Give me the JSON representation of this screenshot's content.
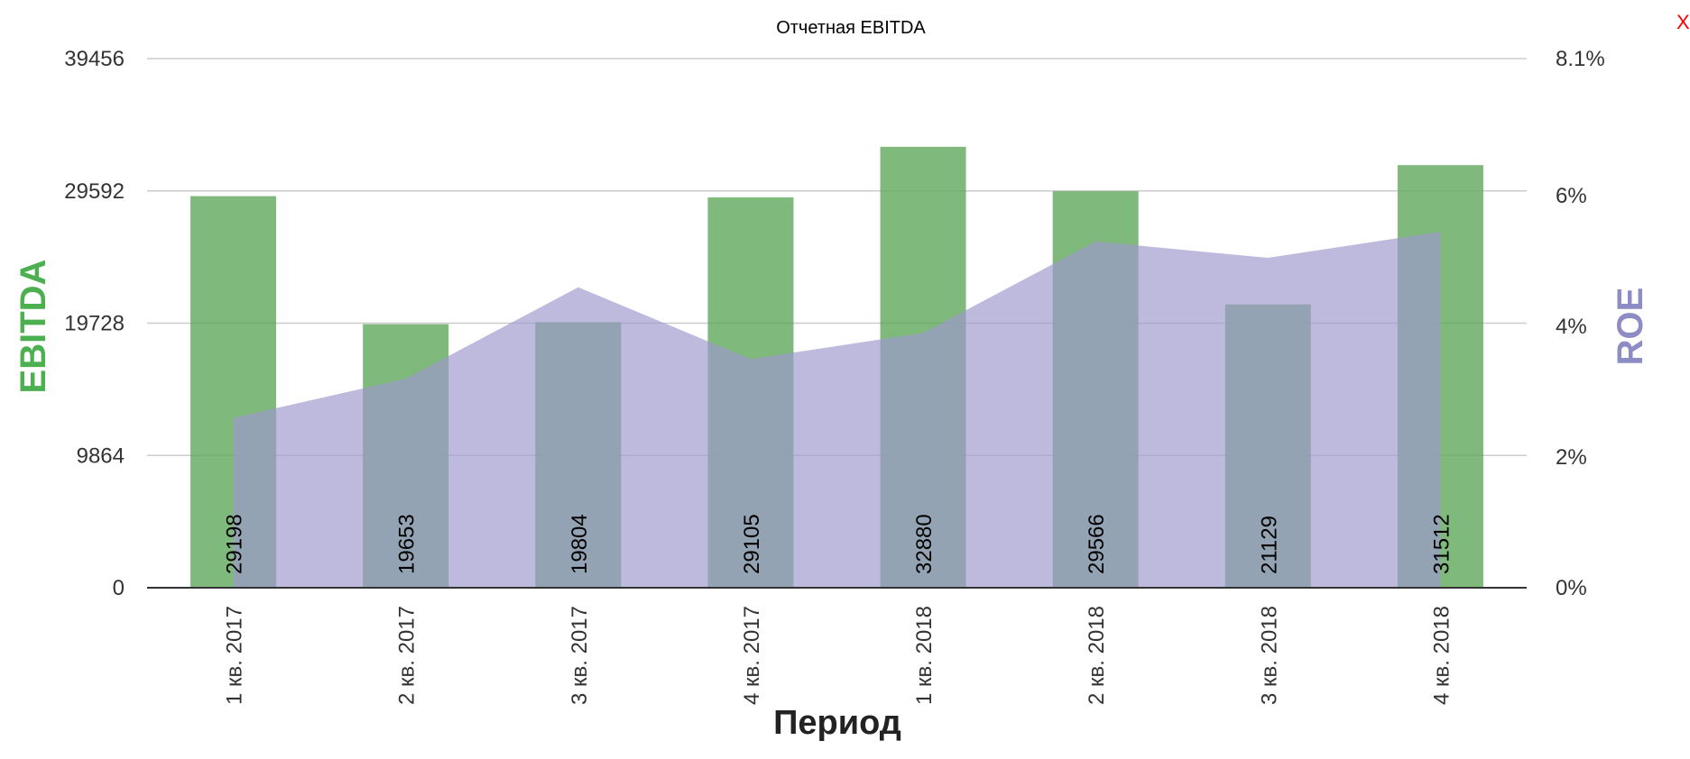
{
  "chart_data": {
    "type": "bar",
    "title": "Отчетная EBITDA",
    "xlabel": "Период",
    "categories": [
      "1 кв. 2017",
      "2 кв. 2017",
      "3 кв. 2017",
      "4 кв. 2017",
      "1 кв. 2018",
      "2 кв. 2018",
      "3 кв. 2018",
      "4 кв. 2018"
    ],
    "series": [
      {
        "name": "EBITDA",
        "type": "bar",
        "axis": "left",
        "color": "#5fa85b",
        "values": [
          29198,
          19653,
          19804,
          29105,
          32880,
          29566,
          21129,
          31512
        ]
      },
      {
        "name": "ROE",
        "type": "area",
        "axis": "right",
        "color": "#9d9acd",
        "values": [
          2.6,
          3.2,
          4.6,
          3.5,
          3.9,
          5.3,
          5.05,
          5.45
        ]
      }
    ],
    "y_left": {
      "label": "EBITDA",
      "color": "#4caf50",
      "min": 0,
      "max": 39456,
      "ticks": [
        "0",
        "9864",
        "19728",
        "29592",
        "39456"
      ]
    },
    "y_right": {
      "label": "ROE",
      "color": "#8e8cc4",
      "min": 0,
      "max": 8.1,
      "ticks": [
        "0%",
        "2%",
        "4%",
        "6%",
        "8.1%"
      ],
      "tick_values": [
        0,
        2,
        4,
        6,
        8.1
      ]
    },
    "grid": true,
    "data_labels": true
  },
  "controls": {
    "close_label": "X"
  }
}
